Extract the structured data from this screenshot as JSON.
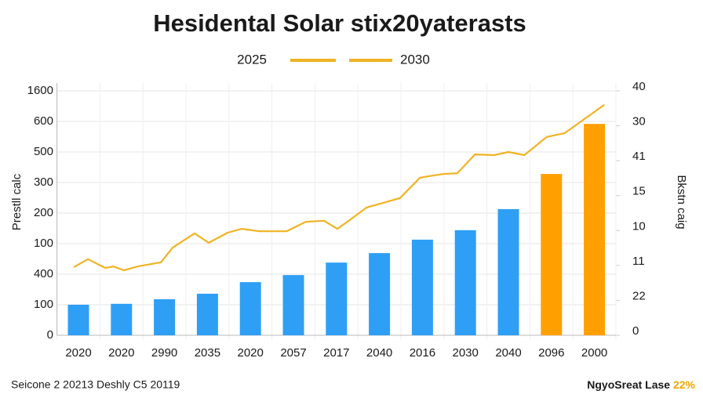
{
  "chart_data": {
    "type": "bar",
    "title": "Hesidental Solar stix20yaterasts",
    "legend": [
      {
        "label": "2025",
        "color": "#f0b323"
      },
      {
        "label": "2030",
        "color": "#f0b323"
      }
    ],
    "y_label": "Prestll calc",
    "y2_label": "Bkstn caig",
    "footer_left": "Seicone 2 20213 Deshly C5 20119",
    "footer_right": "NgyoSreat Lase",
    "footer_right_value": "22%",
    "footer_right_color": "#f5a400",
    "categories": [
      "2020",
      "2020",
      "2990",
      "2035",
      "2020",
      "2057",
      "2017",
      "2040",
      "2016",
      "2030",
      "2040",
      "2096",
      "2000"
    ],
    "series": [
      {
        "type": "bar",
        "colors": [
          "#2e9ff5",
          "#2e9ff5",
          "#2e9ff5",
          "#2e9ff5",
          "#2e9ff5",
          "#2e9ff5",
          "#2e9ff5",
          "#2e9ff5",
          "#2e9ff5",
          "#2e9ff5",
          "#2e9ff5",
          "#ffa000",
          "#ffa000"
        ],
        "values": [
          1.0,
          1.03,
          1.18,
          1.36,
          1.74,
          1.97,
          2.38,
          2.69,
          3.13,
          3.44,
          4.13,
          5.28,
          6.92
        ]
      },
      {
        "type": "line",
        "axis": "y2",
        "color": "#f0b323",
        "x": [
          -0.11,
          0.22,
          0.62,
          0.82,
          1.06,
          1.37,
          1.92,
          2.19,
          2.7,
          3.03,
          3.47,
          3.8,
          4.2,
          4.84,
          5.29,
          5.71,
          6.02,
          6.31,
          6.7,
          7.08,
          7.48,
          7.94,
          8.12,
          8.49,
          8.81,
          9.22,
          9.67,
          10.0,
          10.37,
          10.89,
          11.31,
          11.82,
          12.23
        ],
        "values": [
          1.95,
          2.18,
          1.93,
          1.97,
          1.86,
          1.97,
          2.09,
          2.51,
          2.92,
          2.65,
          2.94,
          3.05,
          2.98,
          2.98,
          3.25,
          3.28,
          3.05,
          3.3,
          3.66,
          3.79,
          3.93,
          4.51,
          4.55,
          4.62,
          4.64,
          5.18,
          5.16,
          5.25,
          5.16,
          5.68,
          5.79,
          6.24,
          6.6
        ]
      }
    ],
    "ylim": [
      0,
      8
    ],
    "yticks": [
      0,
      {
        "value": 1,
        "label": "100"
      },
      {
        "value": 2,
        "label": "400"
      },
      {
        "value": 3,
        "label": "100"
      },
      {
        "value": 4,
        "label": "200"
      },
      {
        "value": 5,
        "label": "300"
      },
      {
        "value": 6,
        "label": "500"
      },
      {
        "value": 7,
        "label": "600"
      },
      {
        "value": 8,
        "label": "1600"
      }
    ],
    "y2lim": [
      0,
      7
    ],
    "y2ticks": [
      0,
      {
        "value": 1,
        "label": "22"
      },
      {
        "value": 2,
        "label": "11"
      },
      {
        "value": 3,
        "label": "10"
      },
      {
        "value": 4,
        "label": "15"
      },
      {
        "value": 5,
        "label": "41"
      },
      {
        "value": 6,
        "label": "30"
      },
      {
        "value": 7,
        "label": "40"
      }
    ],
    "grid": true
  }
}
